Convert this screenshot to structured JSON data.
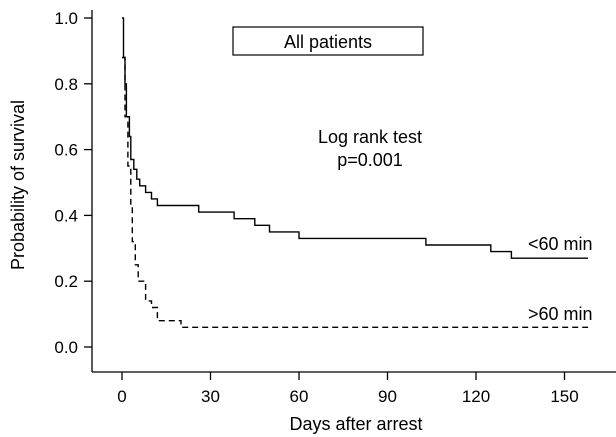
{
  "chart_data": {
    "type": "line",
    "subtype": "kaplan-meier step",
    "title": "All patients",
    "xlabel": "Days after arrest",
    "ylabel": "Probability of survival",
    "xlim": [
      -8,
      158
    ],
    "ylim": [
      -0.1,
      1.0
    ],
    "xticks": [
      0,
      30,
      60,
      90,
      120,
      150
    ],
    "yticks": [
      0.0,
      0.2,
      0.4,
      0.6,
      0.8,
      1.0
    ],
    "xtick_labels": [
      "0",
      "30",
      "60",
      "90",
      "120",
      "150"
    ],
    "ytick_labels": [
      "0.0",
      "0.2",
      "0.4",
      "0.6",
      "0.8",
      "1.0"
    ],
    "grid": false,
    "legend": "none",
    "annotations": {
      "test_line1": "Log rank test",
      "test_line2": "p=0.001"
    },
    "series": [
      {
        "name": "<60 min",
        "line_style": "solid",
        "color": "#000000",
        "points": [
          [
            0,
            1.0
          ],
          [
            0.5,
            0.88
          ],
          [
            1,
            0.8
          ],
          [
            1.5,
            0.7
          ],
          [
            2.5,
            0.64
          ],
          [
            3,
            0.57
          ],
          [
            4,
            0.54
          ],
          [
            5,
            0.51
          ],
          [
            6,
            0.49
          ],
          [
            8,
            0.47
          ],
          [
            10,
            0.45
          ],
          [
            12,
            0.43
          ],
          [
            20,
            0.43
          ],
          [
            26,
            0.41
          ],
          [
            38,
            0.39
          ],
          [
            45,
            0.37
          ],
          [
            50,
            0.35
          ],
          [
            60,
            0.33
          ],
          [
            103,
            0.31
          ],
          [
            125,
            0.29
          ],
          [
            132,
            0.27
          ],
          [
            158,
            0.27
          ]
        ]
      },
      {
        "name": ">60 min",
        "line_style": "dashed",
        "color": "#000000",
        "points": [
          [
            0,
            0.88
          ],
          [
            1,
            0.7
          ],
          [
            2,
            0.55
          ],
          [
            3,
            0.43
          ],
          [
            3.5,
            0.32
          ],
          [
            4.5,
            0.25
          ],
          [
            5.5,
            0.2
          ],
          [
            8,
            0.14
          ],
          [
            10,
            0.12
          ],
          [
            12,
            0.08
          ],
          [
            20,
            0.06
          ],
          [
            158,
            0.06
          ]
        ]
      }
    ]
  },
  "labels": {
    "title": "All patients",
    "ylabel": "Probability of survival",
    "xlabel": "Days after arrest",
    "test_line1": "Log rank test",
    "test_line2": "p=0.001",
    "series_lt60": "<60 min",
    "series_gt60": ">60 min"
  }
}
